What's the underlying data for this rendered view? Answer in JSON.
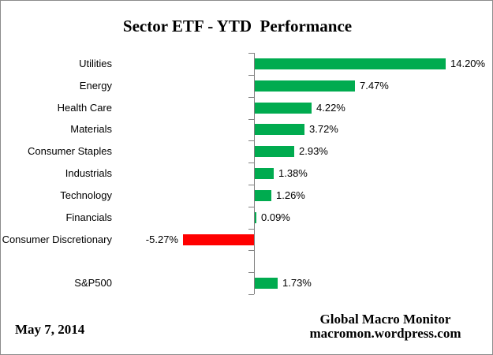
{
  "chart_data": {
    "type": "bar",
    "orientation": "horizontal",
    "title": "Sector ETF - YTD  Performance",
    "categories": [
      "Utilities",
      "Energy",
      "Health Care",
      "Materials",
      "Consumer Staples",
      "Industrials",
      "Technology",
      "Financials",
      "Consumer Discretionary",
      "",
      "S&P500"
    ],
    "values": [
      14.2,
      7.47,
      4.22,
      3.72,
      2.93,
      1.38,
      1.26,
      0.09,
      -5.27,
      null,
      1.73
    ],
    "data_labels": [
      "14.20%",
      "7.47%",
      "4.22%",
      "3.72%",
      "2.93%",
      "1.38%",
      "1.26%",
      "0.09%",
      "-5.27%",
      "",
      "1.73%"
    ],
    "xlabel": "",
    "ylabel": "",
    "xlim": [
      -6,
      16
    ],
    "grid": false,
    "legend": false,
    "colors": {
      "positive": "#00AB4F",
      "negative": "#FF0000",
      "axis": "#808080",
      "text": "#000000"
    }
  },
  "footer": {
    "date": "May 7, 2014",
    "attribution_line1": "Global Macro Monitor",
    "attribution_line2": "macromon.wordpress.com"
  }
}
